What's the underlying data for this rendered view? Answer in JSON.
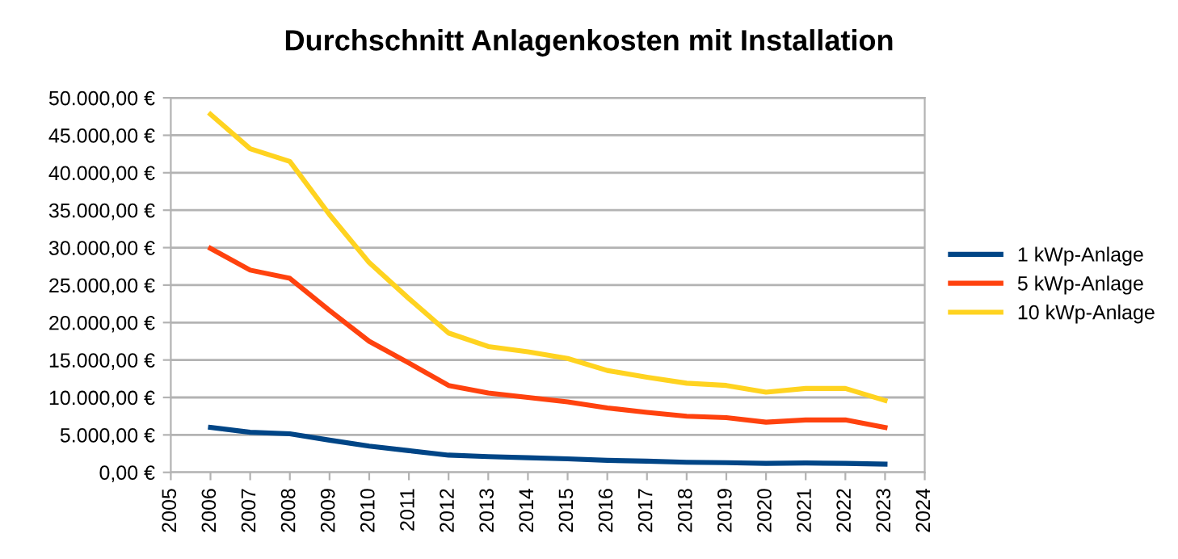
{
  "chart_data": {
    "type": "line",
    "title": "Durchschnitt Anlagenkosten mit Installation",
    "x": [
      2006,
      2007,
      2008,
      2009,
      2010,
      2011,
      2012,
      2013,
      2014,
      2015,
      2016,
      2017,
      2018,
      2019,
      2020,
      2021,
      2022,
      2023
    ],
    "series": [
      {
        "name": "1 kWp-Anlage",
        "color": "#004586",
        "values": [
          6000,
          5350,
          5150,
          4300,
          3500,
          2900,
          2300,
          2100,
          1950,
          1800,
          1600,
          1500,
          1350,
          1300,
          1200,
          1250,
          1200,
          1100
        ]
      },
      {
        "name": "5 kWp-Anlage",
        "color": "#ff420e",
        "values": [
          29900,
          27000,
          25900,
          21600,
          17500,
          14600,
          11600,
          10600,
          10000,
          9400,
          8600,
          8000,
          7500,
          7300,
          6700,
          7000,
          7000,
          6000
        ]
      },
      {
        "name": "10 kWp-Anlage",
        "color": "#ffd320",
        "values": [
          47800,
          43200,
          41500,
          34400,
          28000,
          23200,
          18600,
          16800,
          16100,
          15200,
          13600,
          12700,
          11900,
          11600,
          10700,
          11200,
          11200,
          9600
        ]
      }
    ],
    "xlim": [
      2005,
      2024
    ],
    "xticks": [
      2005,
      2006,
      2007,
      2008,
      2009,
      2010,
      2011,
      2012,
      2013,
      2014,
      2015,
      2016,
      2017,
      2018,
      2019,
      2020,
      2021,
      2022,
      2023,
      2024
    ],
    "ylim": [
      0,
      50000
    ],
    "yticks": [
      {
        "value": 0,
        "label": "0,00 €"
      },
      {
        "value": 5000,
        "label": "5.000,00 €"
      },
      {
        "value": 10000,
        "label": "10.000,00 €"
      },
      {
        "value": 15000,
        "label": "15.000,00 €"
      },
      {
        "value": 20000,
        "label": "20.000,00 €"
      },
      {
        "value": 25000,
        "label": "25.000,00 €"
      },
      {
        "value": 30000,
        "label": "30.000,00 €"
      },
      {
        "value": 35000,
        "label": "35.000,00 €"
      },
      {
        "value": 40000,
        "label": "40.000,00 €"
      },
      {
        "value": 45000,
        "label": "45.000,00 €"
      },
      {
        "value": 50000,
        "label": "50.000,00 €"
      }
    ],
    "grid": "y",
    "legend": "right",
    "marker": "none",
    "line_style": "solid"
  }
}
